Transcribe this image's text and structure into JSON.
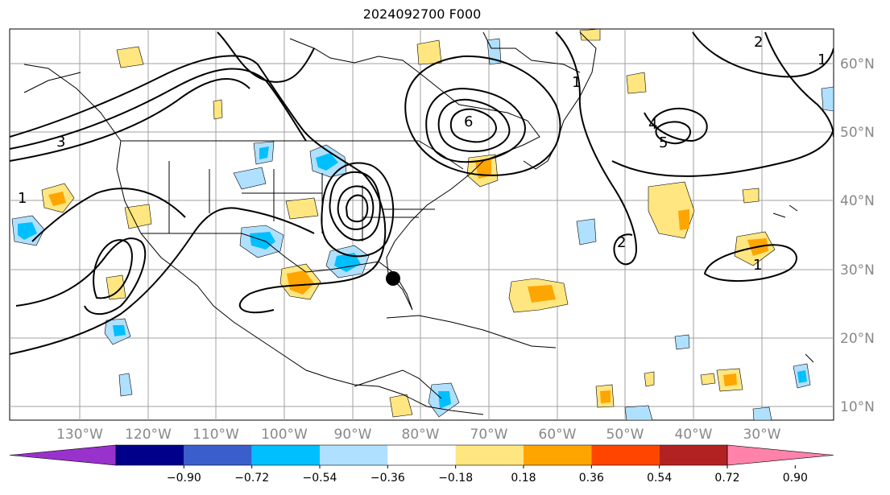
{
  "title": "2024092700 F000",
  "latitude_labels": [
    "60°N",
    "50°N",
    "40°N",
    "30°N",
    "20°N",
    "10°N"
  ],
  "longitude_labels": [
    "130°W",
    "120°W",
    "110°W",
    "100°W",
    "90°W",
    "80°W",
    "70°W",
    "60°W",
    "50°W",
    "40°W",
    "30°W"
  ],
  "colorbar": {
    "colors": [
      "#9932cc",
      "#00008b",
      "#3a5fcd",
      "#00bfff",
      "#b0e0ff",
      "#ffffff",
      "#ffe680",
      "#ffa500",
      "#ff4500",
      "#b22222",
      "#ff82ab"
    ],
    "tick_labels": [
      "−0.90",
      "−0.72",
      "−0.54",
      "−0.36",
      "−0.18",
      "0.18",
      "0.36",
      "0.54",
      "0.72",
      "0.90"
    ]
  },
  "contour_labels": [
    "2",
    "3",
    "1",
    "6",
    "5",
    "4",
    "1",
    "1",
    "1",
    "2"
  ],
  "marker": "storm-center-dot"
}
